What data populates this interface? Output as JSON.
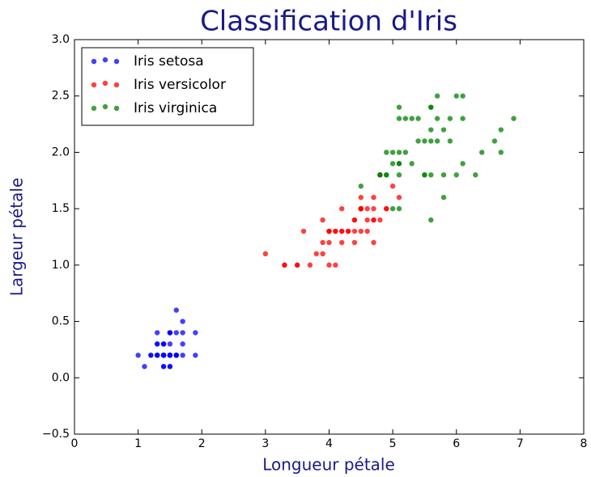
{
  "chart_data": {
    "type": "scatter",
    "title": "Classification d'Iris",
    "xlabel": "Longueur pétale",
    "ylabel": "Largeur pétale",
    "xlim": [
      0,
      8
    ],
    "xticks": [
      0,
      1,
      2,
      3,
      4,
      5,
      6,
      7,
      8
    ],
    "ylim": [
      -0.5,
      3.0
    ],
    "yticks": [
      {
        "value": -0.5,
        "label": "−0.5"
      },
      {
        "value": 0,
        "label": "0.0"
      },
      {
        "value": 0.5,
        "label": "0.5"
      },
      {
        "value": 1,
        "label": "1.0"
      },
      {
        "value": 1.5,
        "label": "1.5"
      },
      {
        "value": 2,
        "label": "2.0"
      },
      {
        "value": 2.5,
        "label": "2.5"
      },
      {
        "value": 3,
        "label": "3.0"
      }
    ],
    "legend": "upper left",
    "series": [
      {
        "name": "Iris setosa",
        "color": "#0000ff",
        "x": [
          1.4,
          1.4,
          1.3,
          1.5,
          1.4,
          1.7,
          1.4,
          1.5,
          1.4,
          1.5,
          1.5,
          1.6,
          1.4,
          1.1,
          1.2,
          1.5,
          1.3,
          1.4,
          1.7,
          1.5,
          1.7,
          1.5,
          1.0,
          1.7,
          1.9,
          1.6,
          1.6,
          1.5,
          1.4,
          1.6,
          1.6,
          1.5,
          1.5,
          1.4,
          1.5,
          1.2,
          1.3,
          1.4,
          1.3,
          1.5,
          1.3,
          1.3,
          1.3,
          1.6,
          1.9,
          1.4,
          1.6,
          1.4,
          1.5,
          1.4
        ],
        "values": [
          0.2,
          0.2,
          0.2,
          0.2,
          0.2,
          0.4,
          0.3,
          0.2,
          0.2,
          0.1,
          0.2,
          0.2,
          0.1,
          0.1,
          0.2,
          0.4,
          0.4,
          0.3,
          0.3,
          0.3,
          0.2,
          0.4,
          0.2,
          0.5,
          0.2,
          0.2,
          0.4,
          0.2,
          0.2,
          0.2,
          0.2,
          0.4,
          0.1,
          0.2,
          0.2,
          0.2,
          0.2,
          0.1,
          0.2,
          0.2,
          0.3,
          0.3,
          0.2,
          0.6,
          0.4,
          0.3,
          0.2,
          0.2,
          0.2,
          0.2
        ]
      },
      {
        "name": "Iris versicolor",
        "color": "#ff0000",
        "x": [
          4.7,
          4.5,
          4.9,
          4.0,
          4.6,
          4.5,
          4.7,
          3.3,
          4.6,
          3.9,
          3.5,
          4.2,
          4.0,
          4.7,
          3.6,
          4.4,
          4.5,
          4.1,
          4.5,
          3.9,
          4.8,
          4.0,
          4.9,
          4.7,
          4.3,
          4.4,
          4.8,
          5.0,
          4.5,
          3.5,
          3.8,
          3.7,
          3.9,
          5.1,
          4.5,
          4.5,
          4.7,
          4.4,
          4.1,
          4.0,
          4.4,
          4.6,
          4.0,
          3.3,
          4.2,
          4.2,
          4.2,
          4.3,
          3.0,
          4.1
        ],
        "values": [
          1.4,
          1.5,
          1.5,
          1.3,
          1.5,
          1.3,
          1.6,
          1.0,
          1.3,
          1.4,
          1.0,
          1.5,
          1.0,
          1.4,
          1.3,
          1.4,
          1.5,
          1.0,
          1.5,
          1.1,
          1.8,
          1.3,
          1.5,
          1.2,
          1.3,
          1.4,
          1.4,
          1.7,
          1.5,
          1.0,
          1.1,
          1.0,
          1.2,
          1.6,
          1.5,
          1.6,
          1.5,
          1.3,
          1.3,
          1.3,
          1.2,
          1.4,
          1.2,
          1.0,
          1.3,
          1.2,
          1.3,
          1.3,
          1.1,
          1.3
        ]
      },
      {
        "name": "Iris virginica",
        "color": "#008000",
        "x": [
          6.0,
          5.1,
          5.9,
          5.6,
          5.8,
          6.6,
          4.5,
          6.3,
          5.8,
          6.1,
          5.1,
          5.3,
          5.5,
          5.0,
          5.1,
          5.3,
          5.5,
          6.7,
          6.9,
          5.0,
          5.7,
          4.9,
          6.7,
          4.9,
          5.7,
          6.0,
          4.8,
          4.9,
          5.6,
          5.8,
          6.1,
          6.4,
          5.6,
          5.1,
          5.6,
          6.1,
          5.6,
          5.5,
          4.8,
          5.4,
          5.6,
          5.1,
          5.1,
          5.9,
          5.7,
          5.2,
          5.0,
          5.2,
          5.4,
          5.1
        ],
        "values": [
          2.5,
          1.9,
          2.1,
          1.8,
          2.2,
          2.1,
          1.7,
          1.8,
          1.8,
          2.5,
          2.0,
          1.9,
          2.1,
          2.0,
          2.4,
          2.3,
          1.8,
          2.2,
          2.3,
          1.5,
          2.3,
          2.0,
          2.0,
          1.8,
          2.1,
          1.8,
          1.8,
          1.8,
          2.1,
          1.6,
          1.9,
          2.0,
          2.2,
          1.5,
          1.4,
          2.3,
          2.4,
          1.8,
          1.8,
          2.1,
          2.4,
          2.3,
          1.9,
          2.3,
          2.5,
          2.3,
          1.9,
          2.0,
          2.3,
          1.8
        ]
      }
    ]
  }
}
